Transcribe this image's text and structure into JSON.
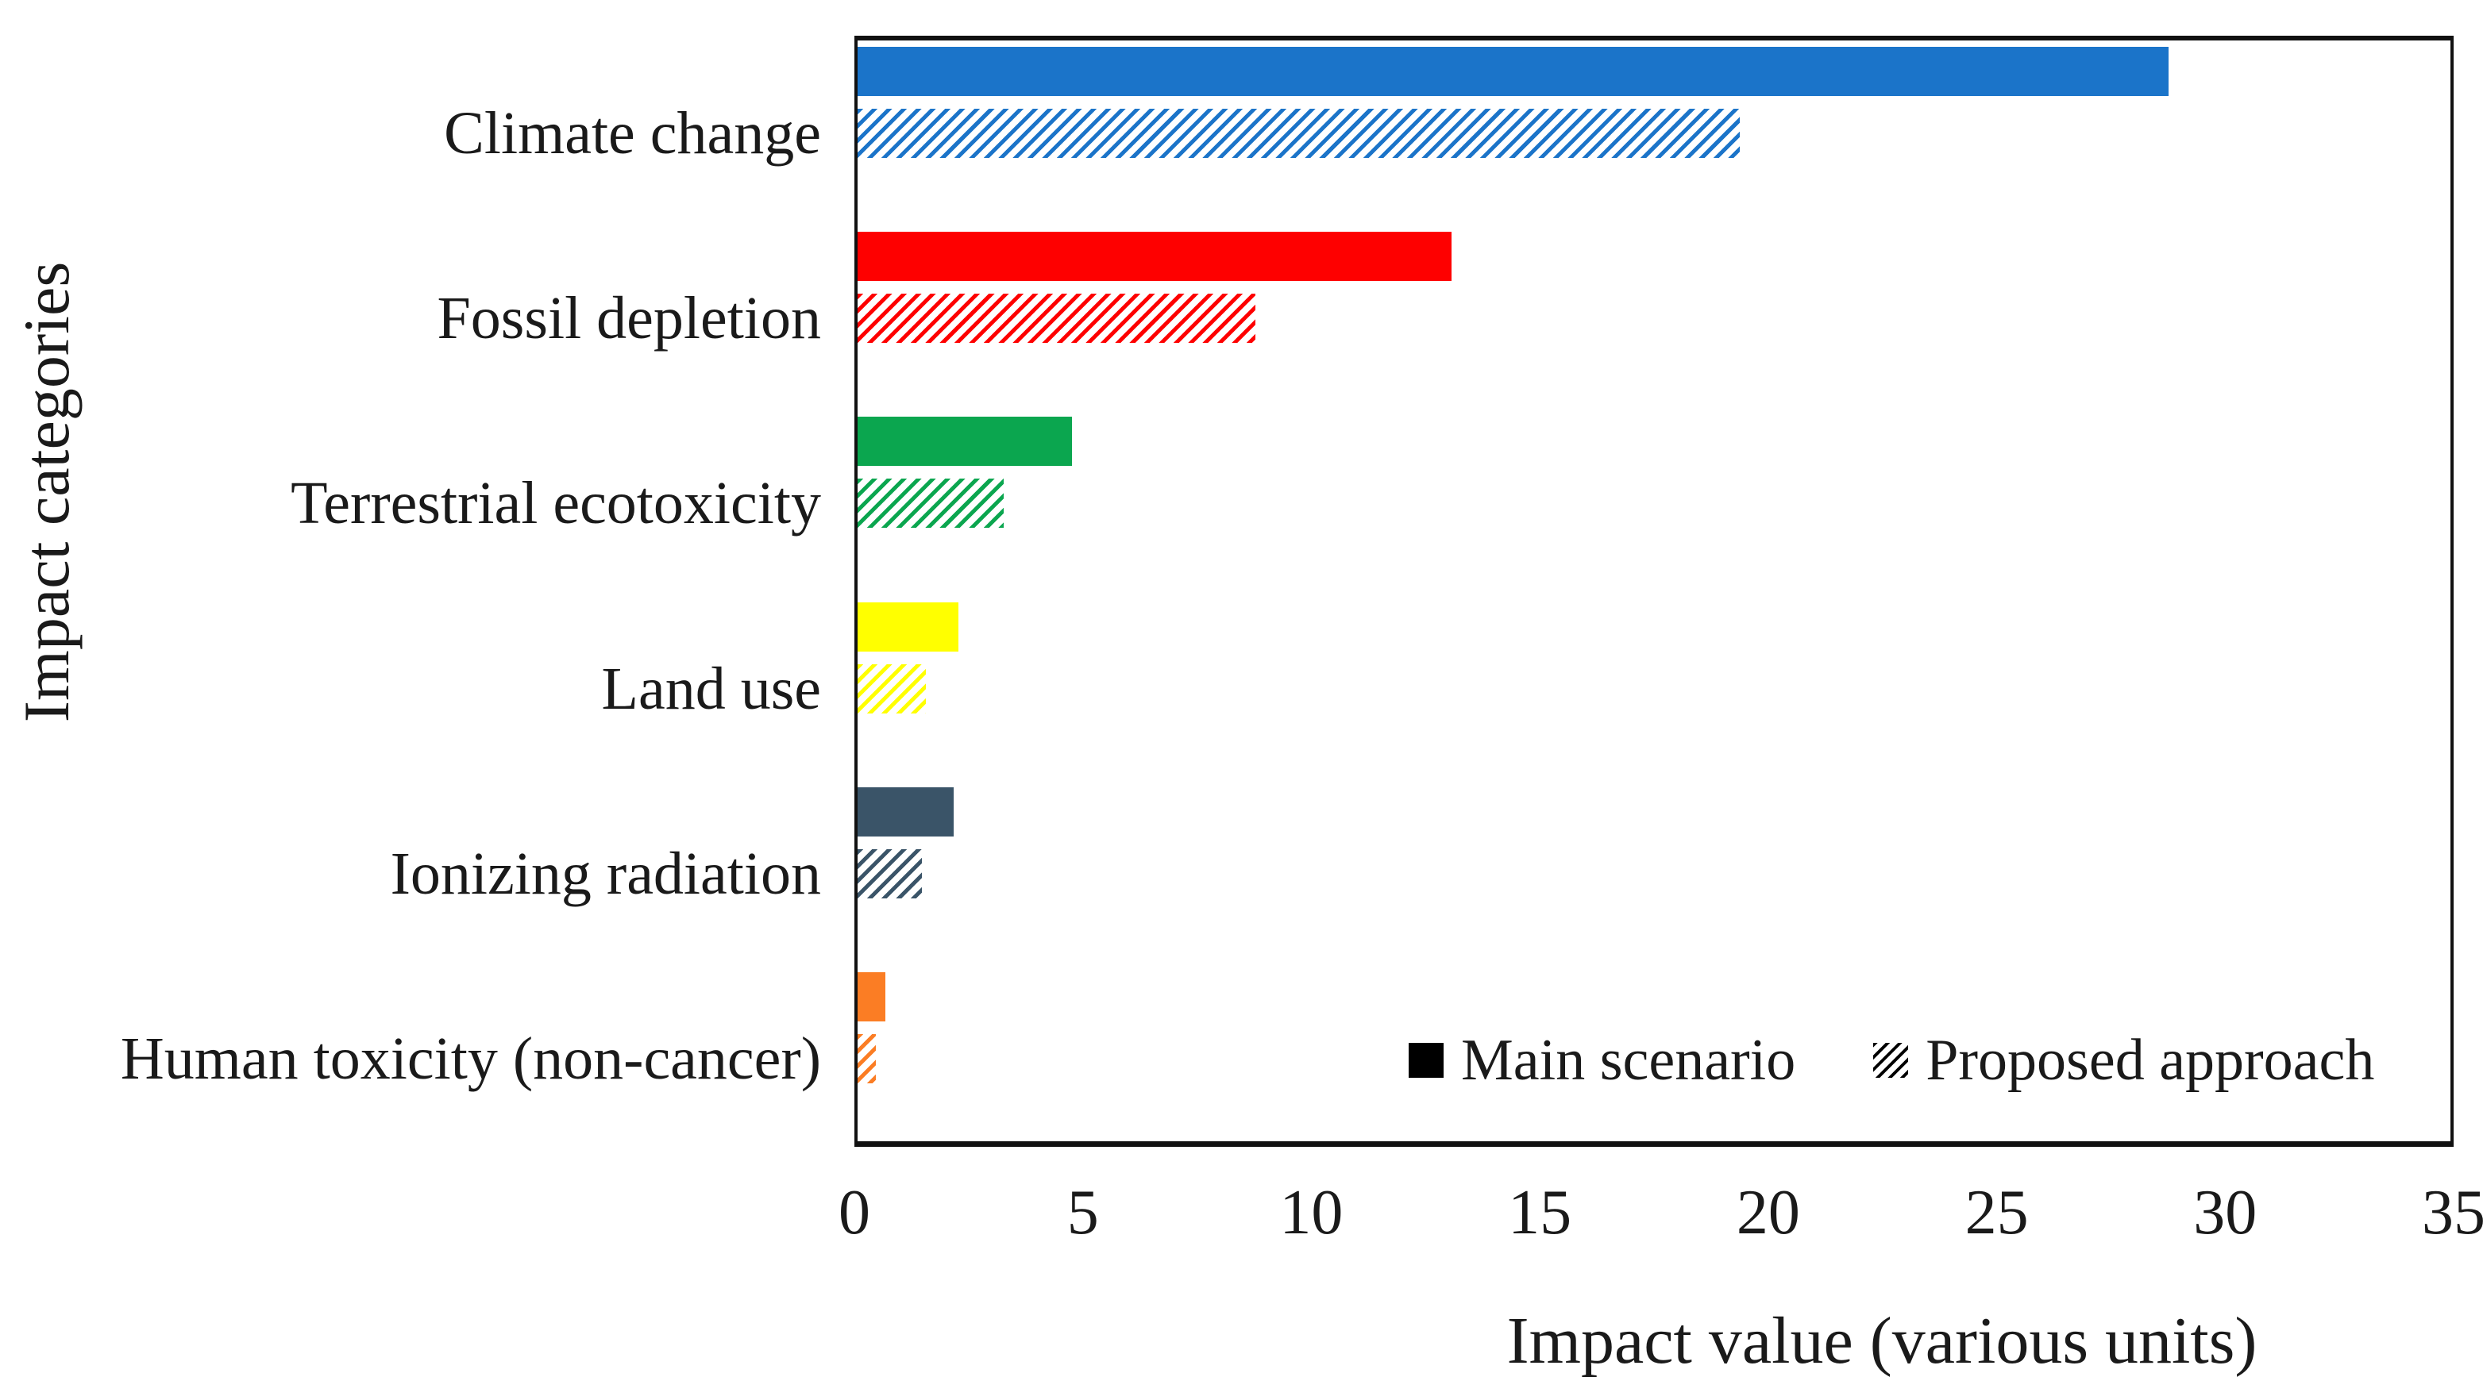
{
  "chart_data": {
    "type": "bar",
    "orientation": "horizontal",
    "title": "",
    "categories": [
      "Climate change",
      "Fossil depletion",
      "Terrestrial ecotoxicity",
      "Land use",
      "Ionizing radiation",
      "Human toxicity (non-cancer)"
    ],
    "series": [
      {
        "name": "Main scenario",
        "style": "solid",
        "values": [
          28.7,
          13.0,
          4.7,
          2.2,
          2.1,
          0.6
        ]
      },
      {
        "name": "Proposed approach",
        "style": "hatched",
        "values": [
          19.3,
          8.7,
          3.2,
          1.5,
          1.4,
          0.4
        ]
      }
    ],
    "category_colors": [
      "#1B74C9",
      "#FE0000",
      "#0BA64F",
      "#FFFF00",
      "#3A5468",
      "#FB7D24"
    ],
    "legend_swatch_color": "#000000",
    "xlabel": "Impact value (various units)",
    "ylabel": "Impact categories",
    "xlim": [
      0,
      35
    ],
    "xticks": [
      0,
      5,
      10,
      15,
      20,
      25,
      30,
      35
    ],
    "grid": false,
    "legend_position": "inside-bottom-right"
  }
}
